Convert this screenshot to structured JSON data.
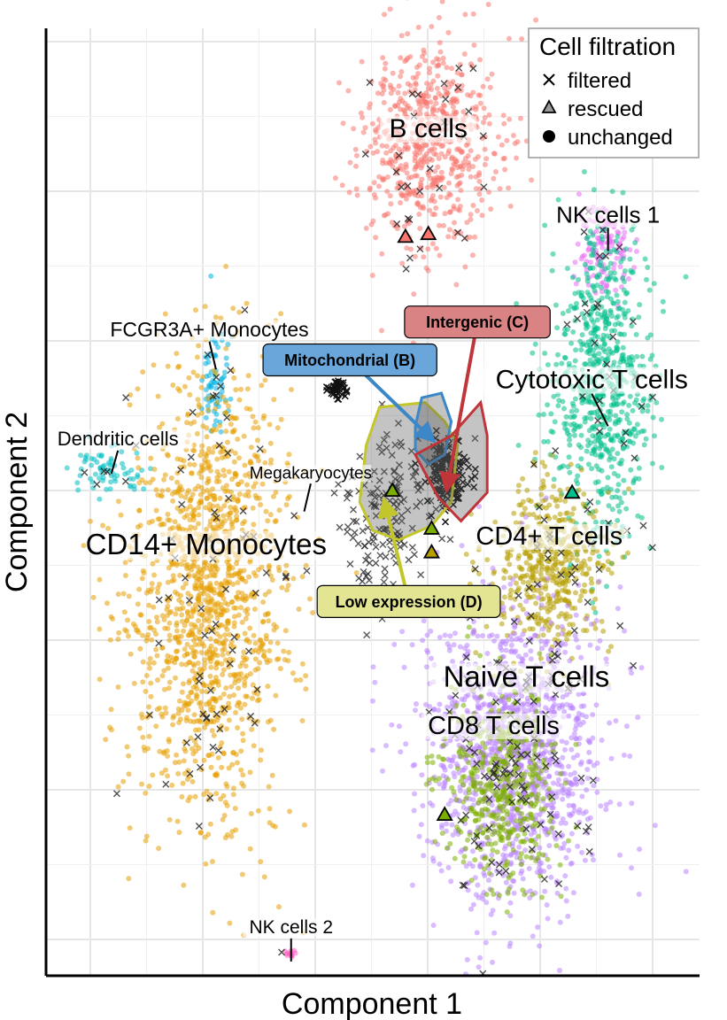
{
  "chart_data": {
    "type": "scatter",
    "title": "",
    "xlabel": "Component 1",
    "ylabel": "Component 2",
    "xlim": [
      0,
      100
    ],
    "ylim": [
      0,
      100
    ],
    "grid": true,
    "legend": {
      "title": "Cell filtration",
      "position": "top-right",
      "entries": [
        {
          "label": "filtered",
          "shape": "cross"
        },
        {
          "label": "rescued",
          "shape": "triangle"
        },
        {
          "label": "unchanged",
          "shape": "circle"
        }
      ]
    },
    "clusters": [
      {
        "name": "B cells",
        "color": "#F8766D",
        "center": [
          59,
          88
        ],
        "spread": [
          5.5,
          5.5
        ],
        "n": 650
      },
      {
        "name": "NK cells 1",
        "color": "#E76BF3",
        "center": [
          85.5,
          77
        ],
        "spread": [
          2.2,
          2.4
        ],
        "n": 120
      },
      {
        "name": "FCGR3A+ Monocytes",
        "color": "#00B0E0",
        "center": [
          26,
          63
        ],
        "spread": [
          1.2,
          3.5
        ],
        "n": 70
      },
      {
        "name": "Dendritic cells",
        "color": "#00BFC4",
        "center": [
          10,
          53.5
        ],
        "spread": [
          3.0,
          1.5
        ],
        "n": 70
      },
      {
        "name": "CD14+ Monocytes",
        "color": "#E69F00",
        "center": [
          25,
          40
        ],
        "spread": [
          6.0,
          11.5
        ],
        "n": 1400
      },
      {
        "name": "Cytotoxic T cells",
        "color": "#00C08B",
        "center": [
          85,
          63
        ],
        "spread": [
          3.8,
          7.5
        ],
        "n": 700
      },
      {
        "name": "CD4+ T cells",
        "color": "#B79F00",
        "center": [
          77.5,
          43
        ],
        "spread": [
          4.5,
          4.5
        ],
        "n": 500
      },
      {
        "name": "Naive T cells",
        "color": "#B983FF",
        "center": [
          71.5,
          24
        ],
        "spread": [
          7.0,
          8.0
        ],
        "n": 1300
      },
      {
        "name": "CD8 T cells",
        "color": "#7CAE00",
        "center": [
          70,
          20
        ],
        "spread": [
          4.5,
          5.0
        ],
        "n": 500
      },
      {
        "name": "Megakaryocytes",
        "color": "#1A1A1A",
        "center": [
          53,
          49
        ],
        "spread": [
          4.0,
          4.0
        ],
        "n": 160
      },
      {
        "name": "NK cells 2",
        "color": "#FF61C3",
        "center": [
          37.5,
          2.5
        ],
        "spread": [
          0.4,
          0.3
        ],
        "n": 12
      }
    ],
    "cluster_labels": [
      {
        "text": "B cells",
        "x": 58.5,
        "y": 88.5,
        "size": 30,
        "leader": false
      },
      {
        "text": "NK cells 1",
        "x": 86,
        "y": 79.5,
        "size": 26,
        "leader": [
          86,
          76.5
        ]
      },
      {
        "text": "FCGR3A+ Monocytes",
        "x": 25,
        "y": 67.5,
        "size": 23,
        "leader": [
          26,
          64
        ]
      },
      {
        "text": "Dendritic cells",
        "x": 11,
        "y": 56,
        "size": 22,
        "leader": [
          10,
          53
        ]
      },
      {
        "text": "Cytotoxic T cells",
        "x": 83.5,
        "y": 62,
        "size": 30,
        "leader": [
          86,
          58
        ]
      },
      {
        "text": "Megakaryocytes",
        "x": 40.5,
        "y": 52.5,
        "size": 19,
        "leader": [
          39.5,
          49
        ]
      },
      {
        "text": "CD14+ Monocytes",
        "x": 24.5,
        "y": 44.5,
        "size": 33,
        "leader": false
      },
      {
        "text": "CD4+ T cells",
        "x": 77,
        "y": 45.5,
        "size": 29,
        "leader": false
      },
      {
        "text": "Naive T cells",
        "x": 73.5,
        "y": 30.5,
        "size": 33,
        "leader": false
      },
      {
        "text": "CD8 T cells",
        "x": 68.5,
        "y": 25.5,
        "size": 29,
        "leader": false
      },
      {
        "text": "NK cells 2",
        "x": 37.5,
        "y": 4.5,
        "size": 21,
        "leader": [
          37.5,
          1.5
        ]
      }
    ],
    "highlight_regions": [
      {
        "label": "Mitochondrial (B)",
        "color": "#3B87C8",
        "fill": "#6AA6DA",
        "label_x": 46.5,
        "label_y": 65,
        "arrow_to": [
          58.5,
          57
        ]
      },
      {
        "label": "Intergenic (C)",
        "color": "#C0353A",
        "fill": "#D98385",
        "label_x": 66,
        "label_y": 69,
        "arrow_to": [
          61.5,
          52
        ]
      },
      {
        "label": "Low expression (D)",
        "color": "#C3C62B",
        "fill": "#E3E592",
        "label_x": 55.5,
        "label_y": 39.5,
        "arrow_to": [
          52,
          49.5
        ]
      }
    ],
    "rescued_points": [
      {
        "x": 55,
        "y": 78,
        "color": "#F8766D"
      },
      {
        "x": 58.5,
        "y": 78.3,
        "color": "#F8766D"
      },
      {
        "x": 53,
        "y": 51.2,
        "color": "#7CAE00"
      },
      {
        "x": 59,
        "y": 47.2,
        "color": "#7CAE00"
      },
      {
        "x": 59,
        "y": 44.7,
        "color": "#B79F00"
      },
      {
        "x": 65,
        "y": 39.5,
        "color": "#B983FF"
      },
      {
        "x": 80.5,
        "y": 51,
        "color": "#00C08B"
      },
      {
        "x": 61,
        "y": 17,
        "color": "#7CAE00"
      }
    ]
  }
}
